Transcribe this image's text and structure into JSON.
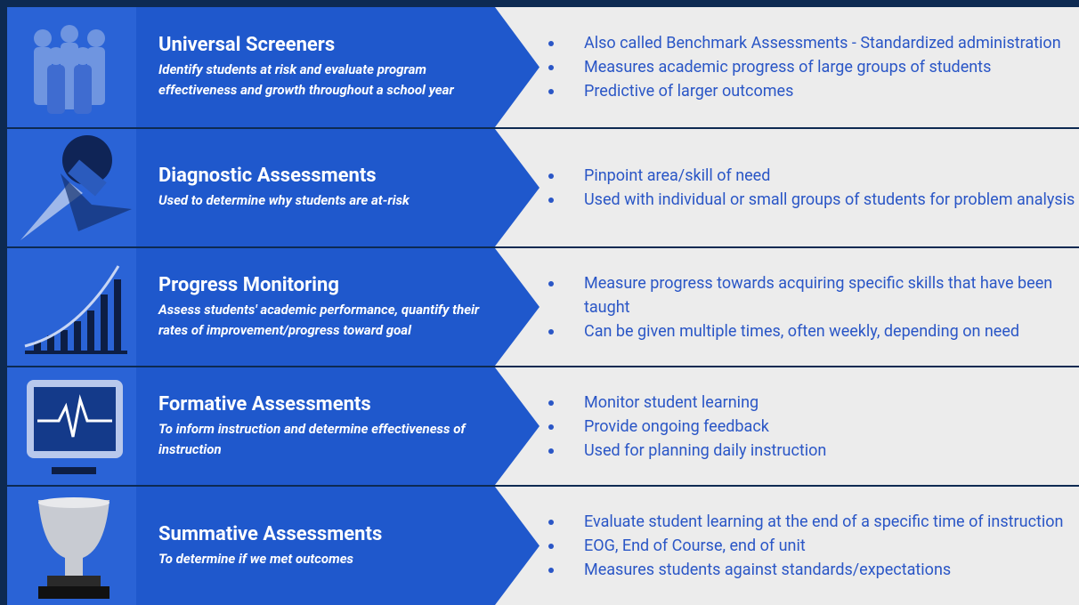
{
  "rows": [
    {
      "title": "Universal Screeners",
      "subtitle": "Identify students at risk and evaluate program effectiveness and growth throughout a school year",
      "bullets": [
        "Also called Benchmark Assessments - Standardized administration",
        "Measures academic progress of large groups of students",
        "Predictive of larger outcomes"
      ]
    },
    {
      "title": "Diagnostic Assessments",
      "subtitle": "Used to determine why students are at-risk",
      "bullets": [
        "Pinpoint area/skill of need",
        "Used with individual or small groups of students for problem analysis"
      ]
    },
    {
      "title": "Progress Monitoring",
      "subtitle": "Assess students' academic performance, quantify their rates of improvement/progress toward goal",
      "bullets": [
        "Measure progress towards acquiring specific skills that have been taught",
        "Can be given multiple times, often weekly, depending on need"
      ]
    },
    {
      "title": "Formative Assessments",
      "subtitle": "To inform instruction and determine effectiveness of instruction",
      "bullets": [
        "Monitor student learning",
        "Provide ongoing feedback",
        "Used for planning daily instruction"
      ]
    },
    {
      "title": "Summative Assessments",
      "subtitle": "To determine if we met outcomes",
      "bullets": [
        "Evaluate student learning at the end of a specific time of instruction",
        "EOG, End of Course, end of unit",
        "Measures students against standards/expectations"
      ]
    }
  ]
}
